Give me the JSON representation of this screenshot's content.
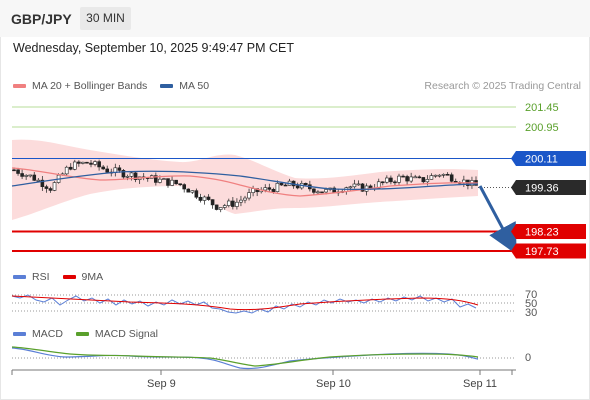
{
  "header": {
    "symbol": "GBP/JPY",
    "timeframe": "30 MIN",
    "datetime": "Wednesday, September 10, 2025 9:49:47 PM CET",
    "credit": "Research © 2025 Trading Central"
  },
  "colors": {
    "ma20": "#f08080",
    "ma50": "#2f5fa0",
    "bollinger_fill": "#fbd6d6",
    "support_red": "#e00000",
    "resistance_blue": "#1a56c8",
    "target_green": "#5aa02c",
    "target_line": "#b7dc9a",
    "arrow": "#2f5fa0",
    "rsi": "#5b7fd6",
    "rsi_ma": "#e00000",
    "macd": "#5b7fd6",
    "macd_signal": "#5aa02c"
  },
  "price_panel": {
    "legend": [
      "MA 20 + Bollinger Bands",
      "MA 50"
    ],
    "levels": [
      {
        "value": 201.45,
        "label": "201.45",
        "kind": "target"
      },
      {
        "value": 200.95,
        "label": "200.95",
        "kind": "target"
      },
      {
        "value": 200.11,
        "label": "200.11",
        "kind": "resistance"
      },
      {
        "value": 199.36,
        "label": "199.36",
        "kind": "current"
      },
      {
        "value": 198.23,
        "label": "198.23",
        "kind": "support"
      },
      {
        "value": 197.73,
        "label": "197.73",
        "kind": "support"
      }
    ]
  },
  "rsi_panel": {
    "legend": [
      "RSI",
      "9MA"
    ],
    "levels": [
      "70",
      "50",
      "30"
    ]
  },
  "macd_panel": {
    "legend": [
      "MACD",
      "MACD Signal"
    ],
    "levels": [
      "0"
    ]
  },
  "chart_data": {
    "type": "line",
    "title": "GBP/JPY",
    "xlabel": "",
    "ylabel": "",
    "x_ticks": [
      "Sep 9",
      "Sep 10",
      "Sep 11"
    ],
    "ylim": [
      197.4,
      201.7
    ],
    "series": [
      {
        "name": "MA 20",
        "values": [
          199.9,
          199.8,
          199.7,
          199.6,
          199.5,
          199.2,
          199.0,
          199.0,
          199.1,
          199.2,
          199.3,
          199.4,
          199.45,
          199.5,
          199.5
        ]
      },
      {
        "name": "MA 50",
        "values": [
          199.5,
          199.55,
          199.6,
          199.6,
          199.55,
          199.45,
          199.4,
          199.35,
          199.3,
          199.3,
          199.3,
          199.35,
          199.4,
          199.45,
          199.45
        ]
      }
    ],
    "close": [
      199.8,
      199.6,
      199.3,
      199.9,
      200.0,
      199.8,
      199.7,
      199.6,
      199.5,
      199.4,
      199.1,
      198.8,
      198.9,
      199.2,
      199.3,
      199.4,
      199.3,
      199.2,
      199.35,
      199.3,
      199.45,
      199.6,
      199.5,
      199.7,
      199.55,
      199.36
    ],
    "annotation": "arrow pointing down toward 197.73"
  }
}
